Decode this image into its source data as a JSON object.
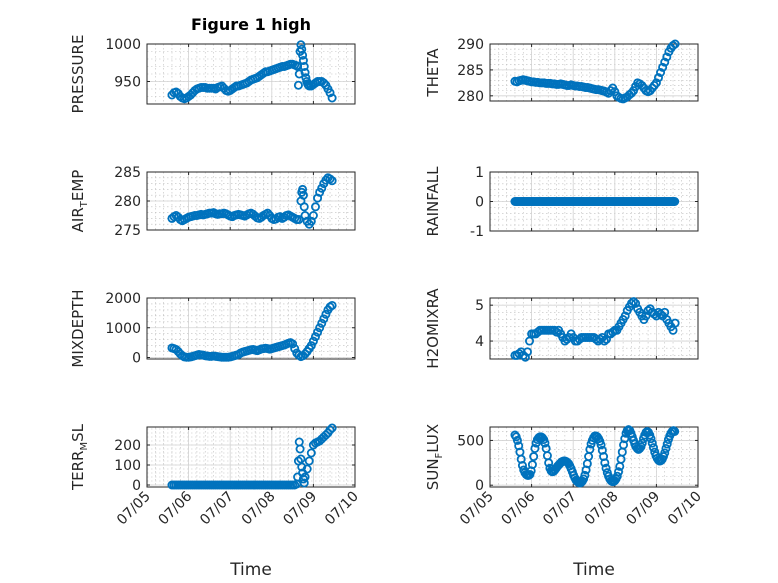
{
  "figure_title": "Figure 1 high",
  "chart_data": [
    {
      "type": "scatter",
      "id": "pressure",
      "title": "Figure 1 high",
      "ylabel": "PRESSURE",
      "ylim": [
        920,
        1000
      ],
      "yticks": [
        950,
        1000
      ],
      "ytick_labels": [
        "950",
        "1000"
      ],
      "x_days": [
        5.6,
        5.65,
        5.7,
        5.75,
        5.8,
        5.85,
        5.9,
        5.95,
        6.0,
        6.05,
        6.1,
        6.15,
        6.2,
        6.25,
        6.3,
        6.35,
        6.4,
        6.45,
        6.5,
        6.55,
        6.6,
        6.65,
        6.7,
        6.75,
        6.8,
        6.85,
        6.9,
        6.95,
        7.0,
        7.05,
        7.1,
        7.15,
        7.2,
        7.25,
        7.3,
        7.35,
        7.4,
        7.45,
        7.5,
        7.55,
        7.6,
        7.65,
        7.7,
        7.75,
        7.8,
        7.85,
        7.9,
        7.95,
        8.0,
        8.05,
        8.1,
        8.15,
        8.2,
        8.25,
        8.3,
        8.35,
        8.4,
        8.45,
        8.5,
        8.55,
        8.6,
        8.62,
        8.64,
        8.66,
        8.68,
        8.7,
        8.72,
        8.74,
        8.76,
        8.78,
        8.8,
        8.82,
        8.84,
        8.86,
        8.88,
        8.9,
        8.95,
        9.0,
        9.05,
        9.1,
        9.15,
        9.2,
        9.25,
        9.3,
        9.35,
        9.4,
        9.45
      ],
      "y": [
        932,
        935,
        936,
        934,
        930,
        928,
        927,
        928,
        930,
        932,
        935,
        938,
        940,
        941,
        942,
        942,
        942,
        941,
        941,
        941,
        941,
        940,
        942,
        943,
        944,
        941,
        938,
        937,
        938,
        940,
        942,
        944,
        944,
        945,
        946,
        947,
        948,
        950,
        952,
        953,
        954,
        955,
        957,
        959,
        961,
        963,
        963,
        964,
        965,
        966,
        967,
        968,
        969,
        970,
        970,
        971,
        972,
        973,
        973,
        972,
        971,
        970,
        945,
        960,
        990,
        999,
        993,
        985,
        978,
        970,
        962,
        955,
        950,
        947,
        945,
        944,
        944,
        946,
        948,
        950,
        950,
        950,
        948,
        945,
        940,
        935,
        928
      ]
    },
    {
      "type": "scatter",
      "id": "theta",
      "ylabel": "THETA",
      "ylim": [
        279,
        290
      ],
      "yticks": [
        280,
        285,
        290
      ],
      "ytick_labels": [
        "280",
        "285",
        "290"
      ],
      "x_days": [
        5.6,
        5.65,
        5.7,
        5.75,
        5.8,
        5.85,
        5.9,
        5.95,
        6.0,
        6.05,
        6.1,
        6.15,
        6.2,
        6.25,
        6.3,
        6.35,
        6.4,
        6.45,
        6.5,
        6.55,
        6.6,
        6.65,
        6.7,
        6.75,
        6.8,
        6.85,
        6.9,
        6.95,
        7.0,
        7.05,
        7.1,
        7.15,
        7.2,
        7.25,
        7.3,
        7.35,
        7.4,
        7.45,
        7.5,
        7.55,
        7.6,
        7.65,
        7.7,
        7.75,
        7.8,
        7.85,
        7.9,
        7.95,
        8.0,
        8.05,
        8.1,
        8.15,
        8.2,
        8.25,
        8.3,
        8.35,
        8.4,
        8.45,
        8.5,
        8.55,
        8.6,
        8.65,
        8.7,
        8.75,
        8.8,
        8.85,
        8.9,
        8.95,
        9.0,
        9.05,
        9.1,
        9.15,
        9.2,
        9.25,
        9.3,
        9.35,
        9.4,
        9.45
      ],
      "y": [
        282.8,
        282.7,
        282.9,
        283.0,
        283.1,
        283.0,
        282.9,
        282.8,
        282.7,
        282.7,
        282.6,
        282.6,
        282.5,
        282.5,
        282.5,
        282.4,
        282.4,
        282.4,
        282.3,
        282.3,
        282.2,
        282.2,
        282.3,
        282.2,
        282.1,
        282.0,
        282.0,
        282.1,
        282.0,
        281.9,
        281.9,
        281.8,
        281.8,
        281.7,
        281.6,
        281.6,
        281.5,
        281.4,
        281.3,
        281.2,
        281.2,
        281.1,
        281.0,
        280.9,
        280.7,
        280.5,
        281.0,
        281.5,
        280.8,
        280.0,
        279.7,
        279.5,
        279.4,
        279.6,
        279.8,
        280.2,
        280.5,
        281.0,
        281.8,
        282.5,
        282.3,
        282.0,
        281.5,
        281.0,
        280.8,
        281.0,
        281.5,
        282.0,
        282.5,
        283.5,
        284.5,
        285.5,
        286.5,
        287.5,
        288.5,
        289.2,
        289.7,
        290.0
      ]
    },
    {
      "type": "scatter",
      "id": "air-temp",
      "ylabel": "AIR",
      "ylabel_sub": "T",
      "ylabel_rest": "EMP",
      "ylim": [
        275,
        285
      ],
      "yticks": [
        275,
        280,
        285
      ],
      "ytick_labels": [
        "275",
        "280",
        "285"
      ],
      "x_days": [
        5.6,
        5.65,
        5.7,
        5.75,
        5.8,
        5.85,
        5.9,
        5.95,
        6.0,
        6.05,
        6.1,
        6.15,
        6.2,
        6.25,
        6.3,
        6.35,
        6.4,
        6.45,
        6.5,
        6.55,
        6.6,
        6.65,
        6.7,
        6.75,
        6.8,
        6.85,
        6.9,
        6.95,
        7.0,
        7.05,
        7.1,
        7.15,
        7.2,
        7.25,
        7.3,
        7.35,
        7.4,
        7.45,
        7.5,
        7.55,
        7.6,
        7.65,
        7.7,
        7.75,
        7.8,
        7.85,
        7.9,
        7.95,
        8.0,
        8.05,
        8.1,
        8.15,
        8.2,
        8.25,
        8.3,
        8.35,
        8.4,
        8.45,
        8.5,
        8.55,
        8.6,
        8.65,
        8.7,
        8.72,
        8.74,
        8.76,
        8.78,
        8.8,
        8.85,
        8.9,
        8.95,
        9.0,
        9.05,
        9.1,
        9.15,
        9.2,
        9.25,
        9.3,
        9.35,
        9.4,
        9.45
      ],
      "y": [
        277.0,
        277.3,
        277.5,
        277.2,
        276.8,
        276.6,
        276.8,
        277.0,
        277.2,
        277.3,
        277.4,
        277.5,
        277.5,
        277.6,
        277.7,
        277.6,
        277.7,
        277.8,
        277.9,
        277.9,
        278.0,
        277.8,
        277.7,
        277.8,
        277.8,
        277.9,
        277.8,
        277.6,
        277.4,
        277.3,
        277.5,
        277.6,
        277.7,
        277.6,
        277.5,
        277.4,
        277.6,
        277.8,
        277.9,
        277.7,
        277.4,
        277.1,
        277.0,
        277.2,
        277.5,
        277.7,
        277.9,
        277.5,
        277.0,
        276.8,
        276.9,
        277.2,
        277.3,
        277.0,
        277.2,
        277.5,
        277.6,
        277.4,
        277.2,
        277.0,
        276.8,
        276.8,
        280.0,
        281.5,
        282.0,
        281.0,
        279.0,
        277.5,
        276.5,
        276.0,
        276.5,
        277.5,
        279.0,
        280.5,
        281.5,
        282.2,
        283.0,
        283.6,
        284.0,
        283.8,
        283.5
      ]
    },
    {
      "type": "scatter",
      "id": "rainfall",
      "ylabel": "RAINFALL",
      "ylim": [
        -1,
        1
      ],
      "yticks": [
        -1,
        0,
        1
      ],
      "ytick_labels": [
        "-1",
        "0",
        "1"
      ],
      "x_range": [
        5.6,
        9.45
      ],
      "x_step": 0.03,
      "y_constant": 0
    },
    {
      "type": "scatter",
      "id": "mixdepth",
      "ylabel": "MIXDEPTH",
      "ylim": [
        -50,
        2000
      ],
      "yticks": [
        0,
        1000,
        2000
      ],
      "ytick_labels": [
        "0",
        "1000",
        "2000"
      ],
      "x_days": [
        5.6,
        5.65,
        5.7,
        5.75,
        5.8,
        5.85,
        5.9,
        5.95,
        6.0,
        6.05,
        6.1,
        6.15,
        6.2,
        6.25,
        6.3,
        6.35,
        6.4,
        6.45,
        6.5,
        6.55,
        6.6,
        6.65,
        6.7,
        6.75,
        6.8,
        6.85,
        6.9,
        6.95,
        7.0,
        7.05,
        7.1,
        7.15,
        7.2,
        7.25,
        7.3,
        7.35,
        7.4,
        7.45,
        7.5,
        7.55,
        7.6,
        7.65,
        7.7,
        7.75,
        7.8,
        7.85,
        7.9,
        7.95,
        8.0,
        8.05,
        8.1,
        8.15,
        8.2,
        8.25,
        8.3,
        8.35,
        8.4,
        8.45,
        8.5,
        8.55,
        8.6,
        8.65,
        8.7,
        8.75,
        8.8,
        8.85,
        8.9,
        8.95,
        9.0,
        9.05,
        9.1,
        9.15,
        9.2,
        9.25,
        9.3,
        9.35,
        9.4,
        9.45
      ],
      "y": [
        320,
        300,
        270,
        200,
        120,
        60,
        20,
        10,
        10,
        20,
        40,
        60,
        80,
        100,
        90,
        80,
        60,
        50,
        40,
        40,
        50,
        40,
        30,
        20,
        10,
        10,
        10,
        10,
        20,
        40,
        60,
        80,
        100,
        150,
        180,
        200,
        220,
        240,
        260,
        270,
        250,
        230,
        260,
        290,
        300,
        310,
        300,
        280,
        300,
        320,
        340,
        360,
        380,
        400,
        420,
        450,
        480,
        500,
        460,
        300,
        150,
        80,
        30,
        60,
        120,
        200,
        300,
        400,
        550,
        700,
        850,
        1000,
        1150,
        1300,
        1450,
        1600,
        1700,
        1750
      ]
    },
    {
      "type": "scatter",
      "id": "h2omixra",
      "ylabel": "H2OMIXRA",
      "ylim": [
        3.5,
        5.2
      ],
      "yticks": [
        4,
        5
      ],
      "ytick_labels": [
        "4",
        "5"
      ],
      "x_days": [
        5.6,
        5.65,
        5.7,
        5.75,
        5.8,
        5.85,
        5.9,
        5.95,
        6.0,
        6.05,
        6.1,
        6.15,
        6.2,
        6.25,
        6.3,
        6.35,
        6.4,
        6.45,
        6.5,
        6.55,
        6.6,
        6.65,
        6.7,
        6.75,
        6.8,
        6.85,
        6.9,
        6.95,
        7.0,
        7.05,
        7.1,
        7.15,
        7.2,
        7.25,
        7.3,
        7.35,
        7.4,
        7.45,
        7.5,
        7.55,
        7.6,
        7.65,
        7.7,
        7.75,
        7.8,
        7.85,
        7.9,
        7.95,
        8.0,
        8.05,
        8.1,
        8.15,
        8.2,
        8.25,
        8.3,
        8.35,
        8.4,
        8.45,
        8.5,
        8.55,
        8.6,
        8.65,
        8.7,
        8.75,
        8.8,
        8.85,
        8.9,
        8.95,
        9.0,
        9.05,
        9.1,
        9.15,
        9.2,
        9.25,
        9.3,
        9.35,
        9.4,
        9.45
      ],
      "y": [
        3.6,
        3.6,
        3.65,
        3.7,
        3.6,
        3.55,
        3.7,
        4.0,
        4.2,
        4.2,
        4.2,
        4.25,
        4.3,
        4.3,
        4.3,
        4.3,
        4.3,
        4.3,
        4.3,
        4.3,
        4.25,
        4.3,
        4.2,
        4.1,
        4.0,
        4.05,
        4.1,
        4.2,
        4.1,
        4.0,
        4.0,
        4.05,
        4.1,
        4.1,
        4.1,
        4.1,
        4.1,
        4.1,
        4.1,
        4.05,
        4.0,
        4.05,
        4.1,
        4.0,
        4.05,
        4.2,
        4.2,
        4.25,
        4.3,
        4.3,
        4.4,
        4.5,
        4.6,
        4.7,
        4.85,
        4.95,
        5.05,
        5.1,
        5.05,
        4.9,
        4.8,
        4.7,
        4.6,
        4.7,
        4.85,
        4.9,
        4.8,
        4.75,
        4.7,
        4.8,
        4.75,
        4.7,
        4.8,
        4.6,
        4.5,
        4.4,
        4.3,
        4.5
      ]
    },
    {
      "type": "scatter",
      "id": "terr-msl",
      "ylabel": "TERR",
      "ylabel_sub": "M",
      "ylabel_rest": "SL",
      "ylim": [
        -10,
        290
      ],
      "yticks": [
        0,
        100,
        200
      ],
      "ytick_labels": [
        "0",
        "100",
        "200"
      ],
      "x_days": [
        5.6,
        5.65,
        5.7,
        5.75,
        5.8,
        5.85,
        5.9,
        5.95,
        6.0,
        6.05,
        6.1,
        6.15,
        6.2,
        6.25,
        6.3,
        6.35,
        6.4,
        6.45,
        6.5,
        6.55,
        6.6,
        6.65,
        6.7,
        6.75,
        6.8,
        6.85,
        6.9,
        6.95,
        7.0,
        7.05,
        7.1,
        7.15,
        7.2,
        7.25,
        7.3,
        7.35,
        7.4,
        7.45,
        7.5,
        7.55,
        7.6,
        7.65,
        7.7,
        7.75,
        7.8,
        7.85,
        7.9,
        7.95,
        8.0,
        8.05,
        8.1,
        8.15,
        8.2,
        8.25,
        8.3,
        8.35,
        8.4,
        8.45,
        8.5,
        8.55,
        8.6,
        8.62,
        8.64,
        8.66,
        8.68,
        8.7,
        8.72,
        8.74,
        8.76,
        8.78,
        8.8,
        8.85,
        8.9,
        8.95,
        9.0,
        9.05,
        9.1,
        9.15,
        9.2,
        9.25,
        9.3,
        9.35,
        9.4,
        9.45
      ],
      "y": [
        0,
        0,
        0,
        0,
        0,
        0,
        0,
        0,
        0,
        0,
        0,
        0,
        0,
        0,
        0,
        0,
        0,
        0,
        0,
        0,
        0,
        0,
        0,
        0,
        0,
        0,
        0,
        0,
        0,
        0,
        0,
        0,
        0,
        0,
        0,
        0,
        0,
        0,
        0,
        0,
        0,
        0,
        0,
        0,
        0,
        0,
        0,
        0,
        0,
        0,
        0,
        0,
        0,
        0,
        0,
        0,
        0,
        0,
        0,
        0,
        5,
        40,
        120,
        215,
        180,
        130,
        90,
        60,
        30,
        10,
        40,
        80,
        120,
        160,
        200,
        210,
        215,
        220,
        230,
        240,
        250,
        260,
        275,
        285
      ]
    },
    {
      "type": "scatter",
      "id": "sun-flux",
      "ylabel": "SUN",
      "ylabel_sub": "F",
      "ylabel_rest": "LUX",
      "ylim": [
        -20,
        650
      ],
      "yticks": [
        0,
        500
      ],
      "ytick_labels": [
        "0",
        "500"
      ],
      "x_days": [
        5.6,
        5.63,
        5.66,
        5.69,
        5.72,
        5.75,
        5.78,
        5.81,
        5.84,
        5.87,
        5.9,
        5.93,
        5.96,
        5.99,
        6.02,
        6.05,
        6.08,
        6.11,
        6.14,
        6.17,
        6.2,
        6.23,
        6.26,
        6.29,
        6.32,
        6.35,
        6.38,
        6.41,
        6.44,
        6.47,
        6.5,
        6.53,
        6.56,
        6.59,
        6.62,
        6.65,
        6.68,
        6.71,
        6.74,
        6.77,
        6.8,
        6.83,
        6.86,
        6.89,
        6.92,
        6.95,
        6.98,
        7.01,
        7.04,
        7.07,
        7.1,
        7.13,
        7.16,
        7.19,
        7.22,
        7.25,
        7.28,
        7.31,
        7.34,
        7.37,
        7.4,
        7.43,
        7.46,
        7.49,
        7.52,
        7.55,
        7.58,
        7.61,
        7.64,
        7.67,
        7.7,
        7.73,
        7.76,
        7.79,
        7.82,
        7.85,
        7.88,
        7.91,
        7.94,
        7.97,
        8.0,
        8.03,
        8.06,
        8.09,
        8.12,
        8.15,
        8.18,
        8.21,
        8.24,
        8.27,
        8.3,
        8.33,
        8.36,
        8.39,
        8.42,
        8.45,
        8.48,
        8.51,
        8.54,
        8.57,
        8.6,
        8.63,
        8.66,
        8.69,
        8.72,
        8.75,
        8.78,
        8.81,
        8.84,
        8.87,
        8.9,
        8.93,
        8.96,
        8.99,
        9.02,
        9.05,
        9.08,
        9.11,
        9.14,
        9.17,
        9.2,
        9.23,
        9.26,
        9.29,
        9.32,
        9.35,
        9.38,
        9.41,
        9.44
      ],
      "y": [
        560,
        540,
        500,
        440,
        370,
        290,
        220,
        170,
        140,
        120,
        110,
        110,
        120,
        160,
        230,
        320,
        410,
        470,
        510,
        530,
        540,
        540,
        530,
        510,
        470,
        410,
        330,
        250,
        190,
        160,
        150,
        155,
        170,
        190,
        210,
        225,
        240,
        255,
        265,
        270,
        270,
        265,
        255,
        240,
        215,
        185,
        150,
        110,
        80,
        55,
        40,
        30,
        25,
        30,
        45,
        70,
        110,
        170,
        240,
        320,
        400,
        460,
        500,
        530,
        550,
        550,
        540,
        520,
        490,
        450,
        390,
        320,
        250,
        190,
        140,
        100,
        70,
        50,
        40,
        40,
        50,
        70,
        100,
        150,
        210,
        290,
        370,
        450,
        520,
        580,
        610,
        620,
        610,
        580,
        540,
        500,
        460,
        430,
        410,
        400,
        410,
        430,
        470,
        520,
        560,
        590,
        600,
        590,
        560,
        520,
        470,
        420,
        370,
        330,
        300,
        280,
        270,
        275,
        290,
        320,
        360,
        410,
        460,
        510,
        550,
        580,
        600,
        610,
        600
      ]
    }
  ],
  "x_axis": {
    "xlim_days": [
      5,
      10
    ],
    "xticks_days": [
      5,
      6,
      7,
      8,
      9,
      10
    ],
    "xtick_labels": [
      "07/05",
      "07/06",
      "07/07",
      "07/08",
      "07/09",
      "07/10"
    ],
    "xlabel": "Time"
  },
  "colors": {
    "marker": "#0072BD",
    "axes": "#262626",
    "grid": "#d3d3d3"
  }
}
